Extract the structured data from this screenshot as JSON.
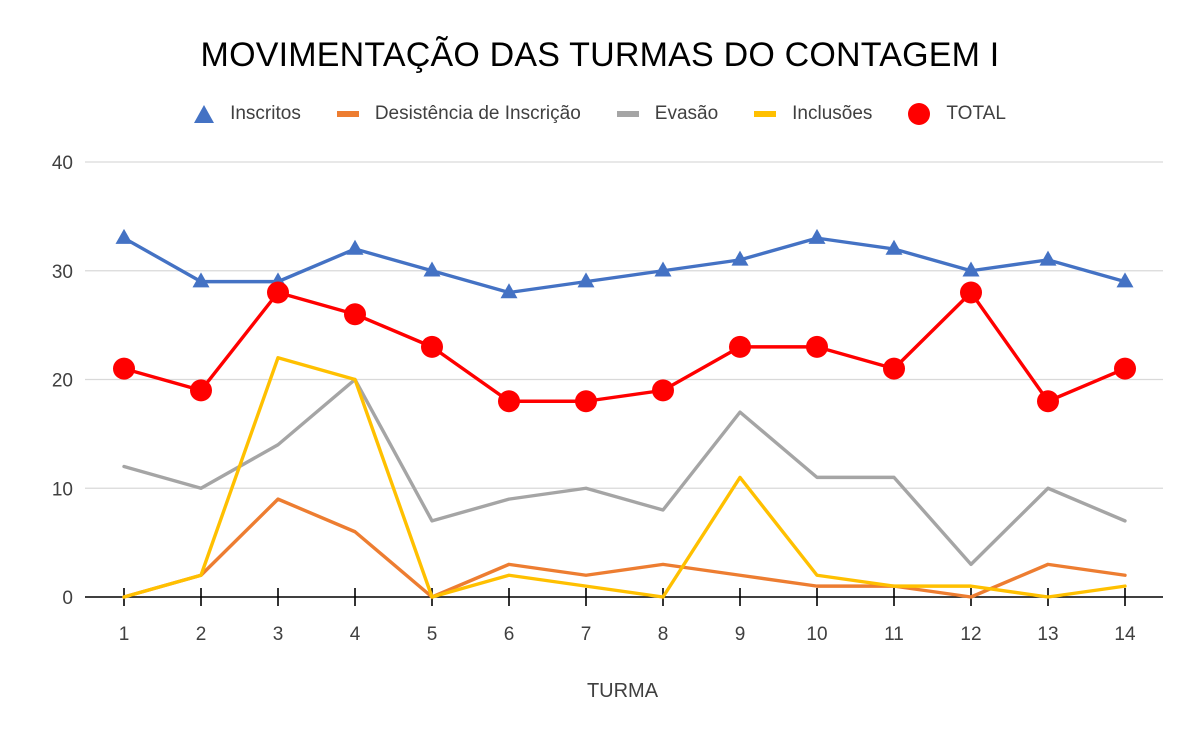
{
  "chart_data": {
    "type": "line",
    "title": "MOVIMENTAÇÃO DAS TURMAS DO CONTAGEM I",
    "xlabel": "TURMA",
    "ylabel": "",
    "categories": [
      "1",
      "2",
      "3",
      "4",
      "5",
      "6",
      "7",
      "8",
      "9",
      "10",
      "11",
      "12",
      "13",
      "14"
    ],
    "ylim": [
      0,
      40
    ],
    "yticks": [
      "0",
      "10",
      "20",
      "30",
      "40"
    ],
    "grid": true,
    "legend_position": "top",
    "series": [
      {
        "name": "Inscritos",
        "color": "#4472C4",
        "marker": "triangle",
        "values": [
          33,
          29,
          29,
          32,
          30,
          28,
          29,
          30,
          31,
          33,
          32,
          30,
          31,
          29
        ]
      },
      {
        "name": "Desistência de Inscrição",
        "color": "#ED7D31",
        "marker": "none",
        "values": [
          0,
          2,
          9,
          6,
          0,
          3,
          2,
          3,
          2,
          1,
          1,
          0,
          3,
          2
        ]
      },
      {
        "name": "Evasão",
        "color": "#A5A5A5",
        "marker": "none",
        "values": [
          12,
          10,
          14,
          20,
          7,
          9,
          10,
          8,
          17,
          11,
          11,
          3,
          10,
          7
        ]
      },
      {
        "name": "Inclusões",
        "color": "#FFC000",
        "marker": "none",
        "values": [
          0,
          2,
          22,
          20,
          0,
          2,
          1,
          0,
          11,
          2,
          1,
          1,
          0,
          1
        ]
      },
      {
        "name": "TOTAL",
        "color": "#FF0000",
        "marker": "circle",
        "values": [
          21,
          19,
          28,
          26,
          23,
          18,
          18,
          19,
          23,
          23,
          21,
          28,
          18,
          21
        ]
      }
    ]
  }
}
